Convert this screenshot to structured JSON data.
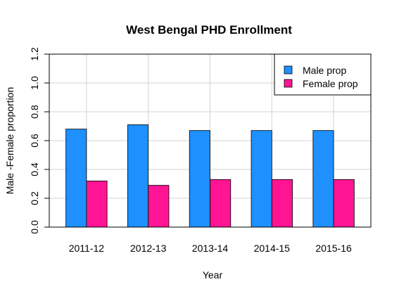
{
  "chart_data": {
    "type": "bar",
    "title": "West Bengal PHD Enrollment",
    "xlabel": "Year",
    "ylabel": "Male -Female proportion",
    "categories": [
      "2011-12",
      "2012-13",
      "2013-14",
      "2014-15",
      "2015-16"
    ],
    "series": [
      {
        "name": "Male prop",
        "values": [
          0.68,
          0.71,
          0.67,
          0.67,
          0.67
        ],
        "color": "#1E90FF"
      },
      {
        "name": "Female prop",
        "values": [
          0.32,
          0.29,
          0.33,
          0.33,
          0.33
        ],
        "color": "#FF1493"
      }
    ],
    "ylim": [
      0,
      1.2
    ],
    "yticks": [
      "0.0",
      "0.2",
      "0.4",
      "0.6",
      "0.8",
      "1.0",
      "1.2"
    ],
    "grid": true,
    "legend": "top-right"
  }
}
